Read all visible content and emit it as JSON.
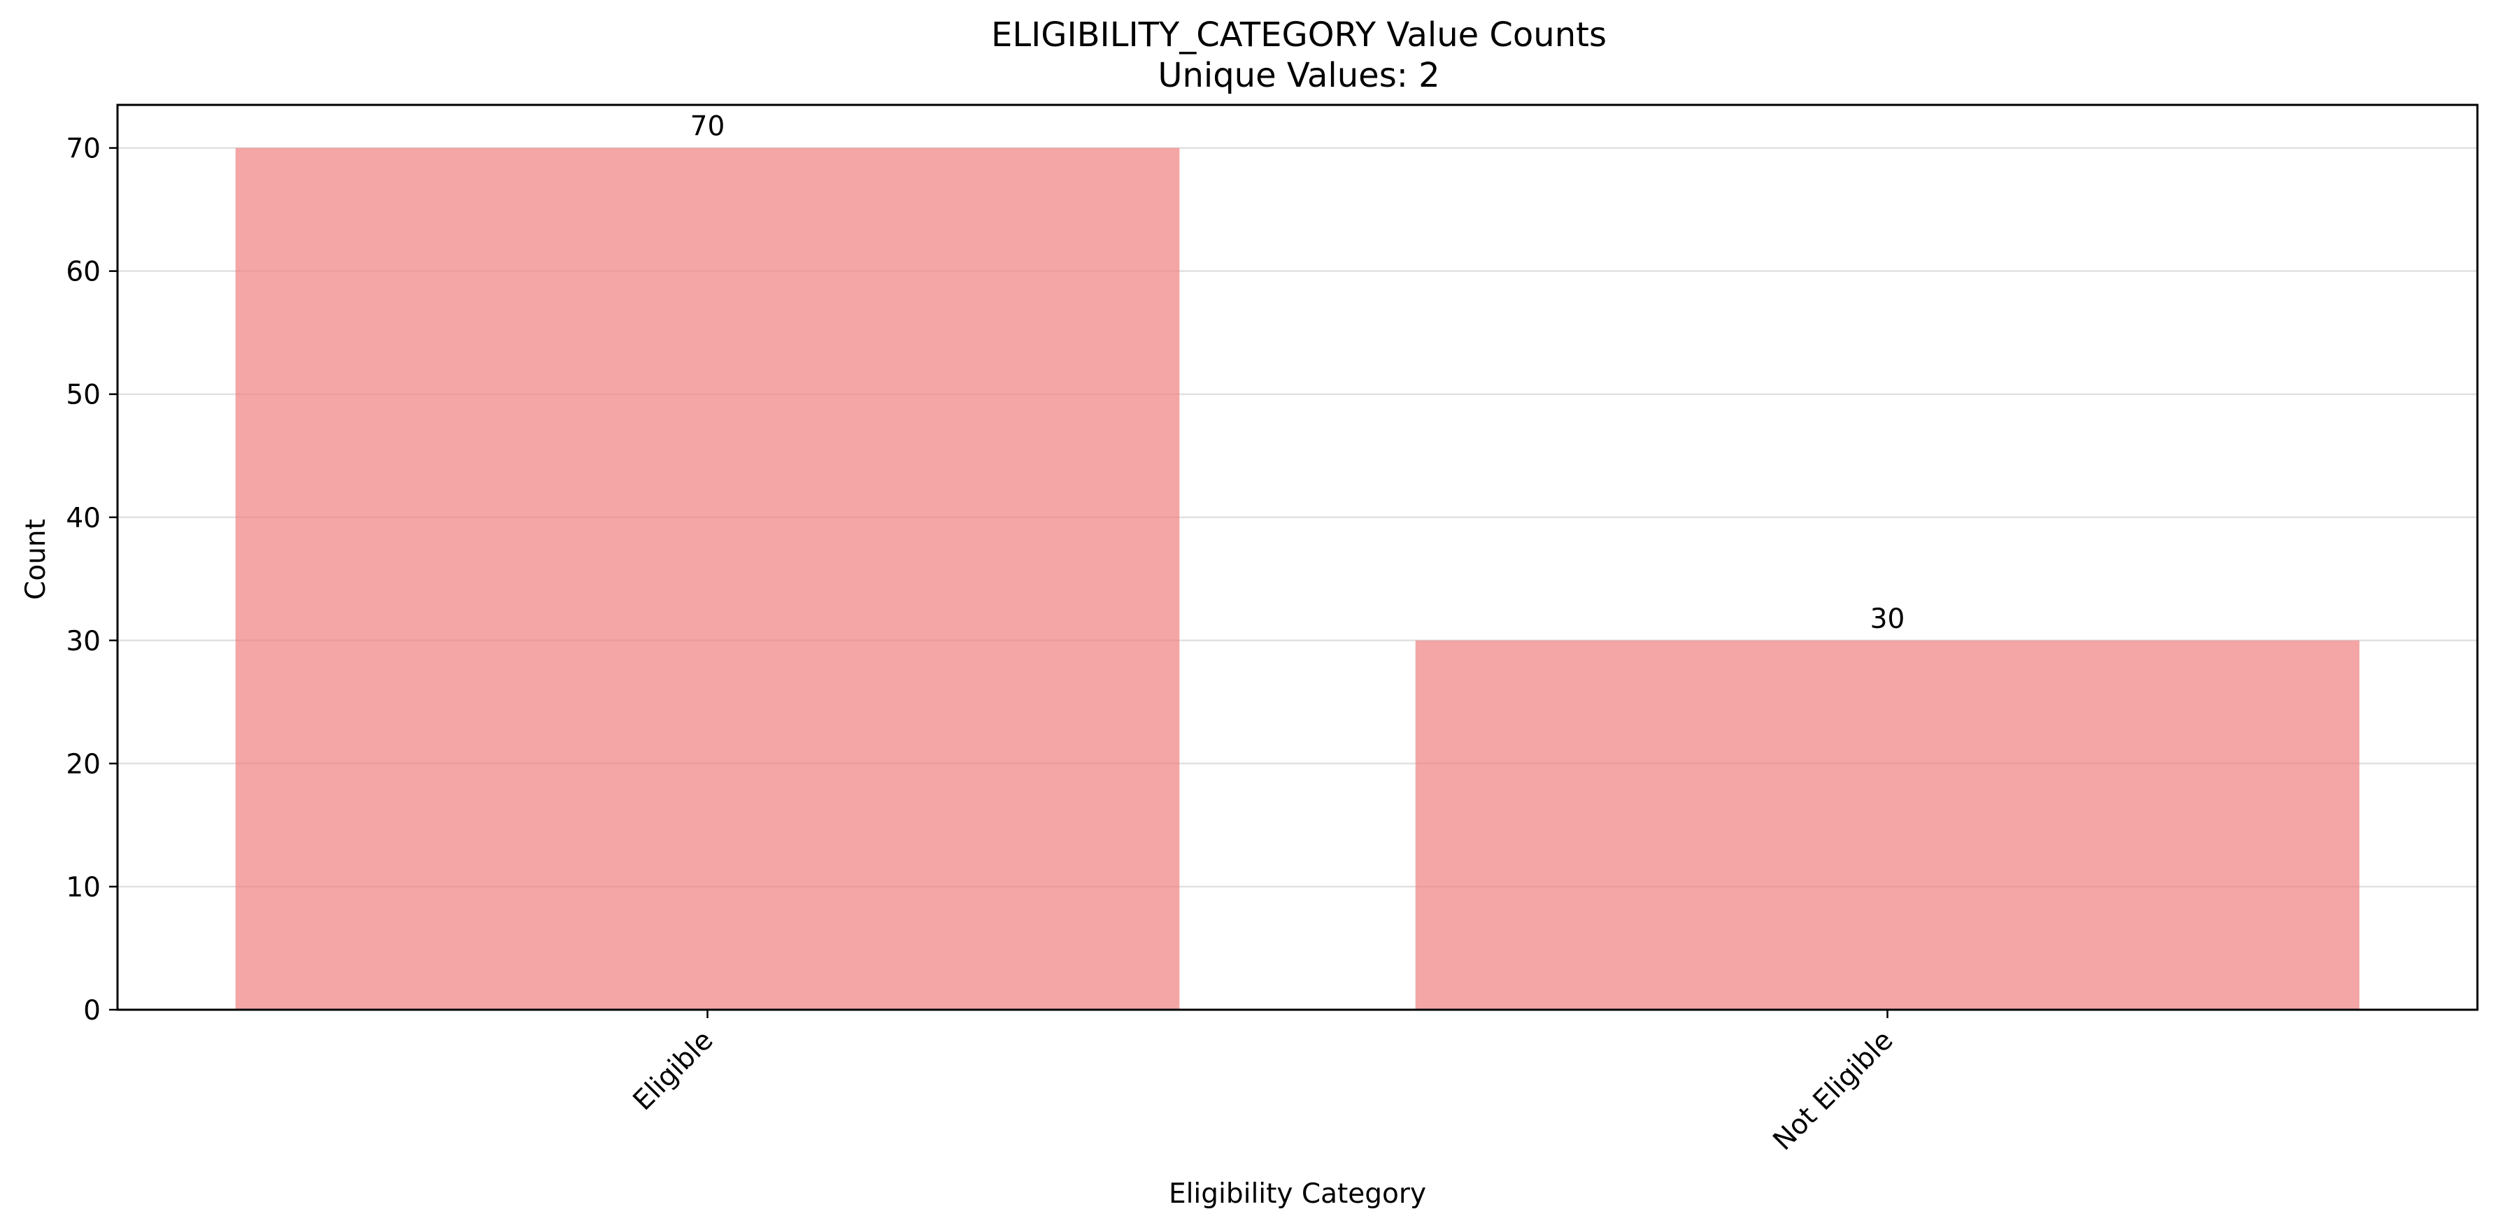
{
  "chart_data": {
    "type": "bar",
    "title": "ELIGIBILITY_CATEGORY Value Counts",
    "subtitle": "Unique Values: 2",
    "xlabel": "Eligibility Category",
    "ylabel": "Count",
    "categories": [
      "Eligible",
      "Not Eligible"
    ],
    "values": [
      70,
      30
    ],
    "data_labels": [
      "70",
      "30"
    ],
    "ylim": [
      0,
      73.5
    ],
    "yticks": [
      0,
      10,
      20,
      30,
      40,
      50,
      60,
      70
    ],
    "grid": "horizontal",
    "bar_color": "#f08080",
    "bar_opacity": 0.7,
    "legend": "none",
    "x_tick_rotation": "45"
  }
}
